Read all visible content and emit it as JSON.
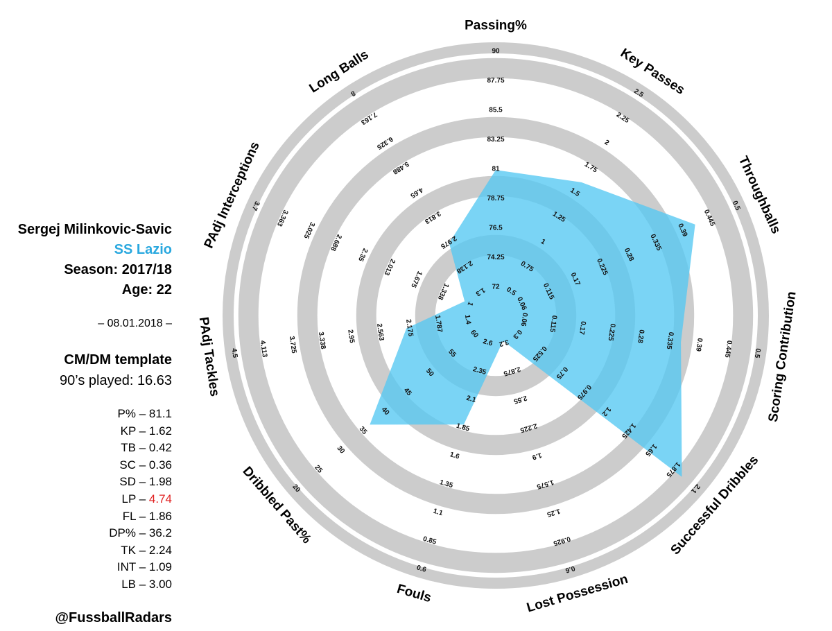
{
  "player": {
    "name": "Sergej Milinkovic-Savic",
    "club": "SS Lazio",
    "season": "Season: 2017/18",
    "age": "Age: 22",
    "date": "– 08.01.2018 –",
    "template": "CM/DM template",
    "played": "90’s played: 16.63",
    "handle": "@FussballRadars"
  },
  "colors": {
    "club": "#29a8df",
    "highlight": "#e02020",
    "ring": "#cccccc",
    "fill": "#55c8f2"
  },
  "stats": [
    {
      "abbr": "P%",
      "value": "81.1",
      "highlight": false
    },
    {
      "abbr": "KP",
      "value": "1.62",
      "highlight": false
    },
    {
      "abbr": "TB",
      "value": "0.42",
      "highlight": false
    },
    {
      "abbr": "SC",
      "value": "0.36",
      "highlight": false
    },
    {
      "abbr": "SD",
      "value": "1.98",
      "highlight": false
    },
    {
      "abbr": "LP",
      "value": "4.74",
      "highlight": true
    },
    {
      "abbr": "FL",
      "value": "1.86",
      "highlight": false
    },
    {
      "abbr": "DP%",
      "value": "36.2",
      "highlight": false
    },
    {
      "abbr": "TK",
      "value": "2.24",
      "highlight": false
    },
    {
      "abbr": "INT",
      "value": "1.09",
      "highlight": false
    },
    {
      "abbr": "LB",
      "value": "3.00",
      "highlight": false
    }
  ],
  "chart_data": {
    "type": "radar",
    "axes": [
      {
        "label": "Passing%",
        "ticks": [
          "72",
          "74.25",
          "76.5",
          "78.75",
          "81",
          "83.25",
          "85.5",
          "87.75",
          "90"
        ],
        "value": 81.1
      },
      {
        "label": "Key Passes",
        "ticks": [
          "0.5",
          "0.75",
          "1",
          "1.25",
          "1.5",
          "1.75",
          "2",
          "2.25",
          "2.5"
        ],
        "value": 1.62
      },
      {
        "label": "Throughballs",
        "ticks": [
          "0.06",
          "0.115",
          "0.17",
          "0.225",
          "0.28",
          "0.335",
          "0.39",
          "0.445",
          "0.5"
        ],
        "value": 0.42
      },
      {
        "label": "Scoring Contribution",
        "ticks": [
          "0.06",
          "0.115",
          "0.17",
          "0.225",
          "0.28",
          "0.335",
          "0.39",
          "0.445",
          "0.5"
        ],
        "value": 0.36
      },
      {
        "label": "Successful Dribbles",
        "ticks": [
          "0.3",
          "0.525",
          "0.75",
          "0.975",
          "1.2",
          "1.425",
          "1.65",
          "1.875",
          "2.1"
        ],
        "value": 1.98
      },
      {
        "label": "Lost Possession",
        "ticks": [
          "3.2",
          "2.875",
          "2.55",
          "2.225",
          "1.9",
          "1.575",
          "1.25",
          "0.925",
          "0.6"
        ],
        "value": 4.74
      },
      {
        "label": "Fouls",
        "ticks": [
          "2.6",
          "2.35",
          "2.1",
          "1.85",
          "1.6",
          "1.35",
          "1.1",
          "0.85",
          "0.6"
        ],
        "value": 1.86
      },
      {
        "label": "Dribbled Past%",
        "ticks": [
          "60",
          "55",
          "50",
          "45",
          "40",
          "35",
          "30",
          "25",
          "20"
        ],
        "value": 36.2
      },
      {
        "label": "PAdj Tackles",
        "ticks": [
          "1.4",
          "1.787",
          "2.175",
          "2.563",
          "2.95",
          "3.338",
          "3.725",
          "4.113",
          "4.5"
        ],
        "value": 2.24
      },
      {
        "label": "PAdj Interceptions",
        "ticks": [
          "1",
          "1.338",
          "1.675",
          "2.013",
          "2.35",
          "2.688",
          "3.025",
          "3.363",
          "3.7"
        ],
        "value": 1.09
      },
      {
        "label": "Long Balls",
        "ticks": [
          "1.3",
          "2.138",
          "2.975",
          "3.813",
          "4.65",
          "5.488",
          "6.325",
          "7.163",
          "8"
        ],
        "value": 3.0
      }
    ]
  }
}
